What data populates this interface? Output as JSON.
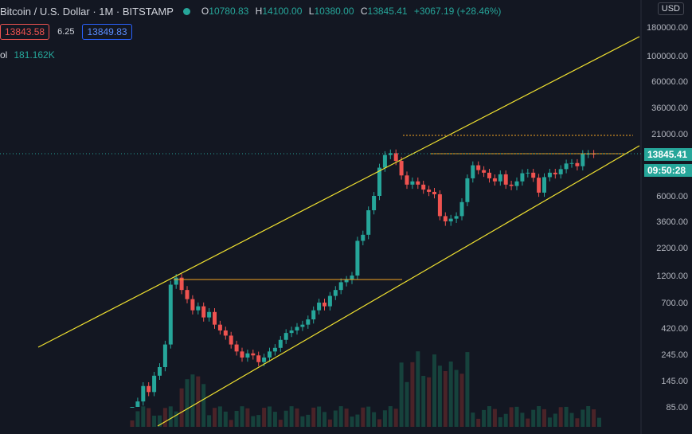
{
  "header": {
    "symbol_title": "Bitcoin / U.S. Dollar · 1M · BITSTAMP",
    "ohlc": [
      {
        "k": "O",
        "v": "10780.83"
      },
      {
        "k": "H",
        "v": "14100.00"
      },
      {
        "k": "L",
        "v": "10380.00"
      },
      {
        "k": "C",
        "v": "13845.41"
      },
      {
        "k": "",
        "v": "+3067.19 (+28.46%)"
      }
    ]
  },
  "trade": {
    "sell": "13843.58",
    "spread": "6.25",
    "buy": "13849.83"
  },
  "volume": {
    "label": "ol",
    "value": "181.162K"
  },
  "currency": "USD",
  "price_axis": [
    "180000.00",
    "100000.00",
    "60000.00",
    "36000.00",
    "21000.00",
    "13845.41",
    "6000.00",
    "3600.00",
    "2200.00",
    "1200.00",
    "700.00",
    "420.00",
    "245.00",
    "145.00",
    "85.00"
  ],
  "last_price": {
    "value": "13845.41",
    "countdown": "09:50:28"
  },
  "colors": {
    "up": "#26a69a",
    "down": "#ef5350",
    "channel": "#f0e130",
    "level": "#f5a623",
    "bg": "#131722"
  }
}
